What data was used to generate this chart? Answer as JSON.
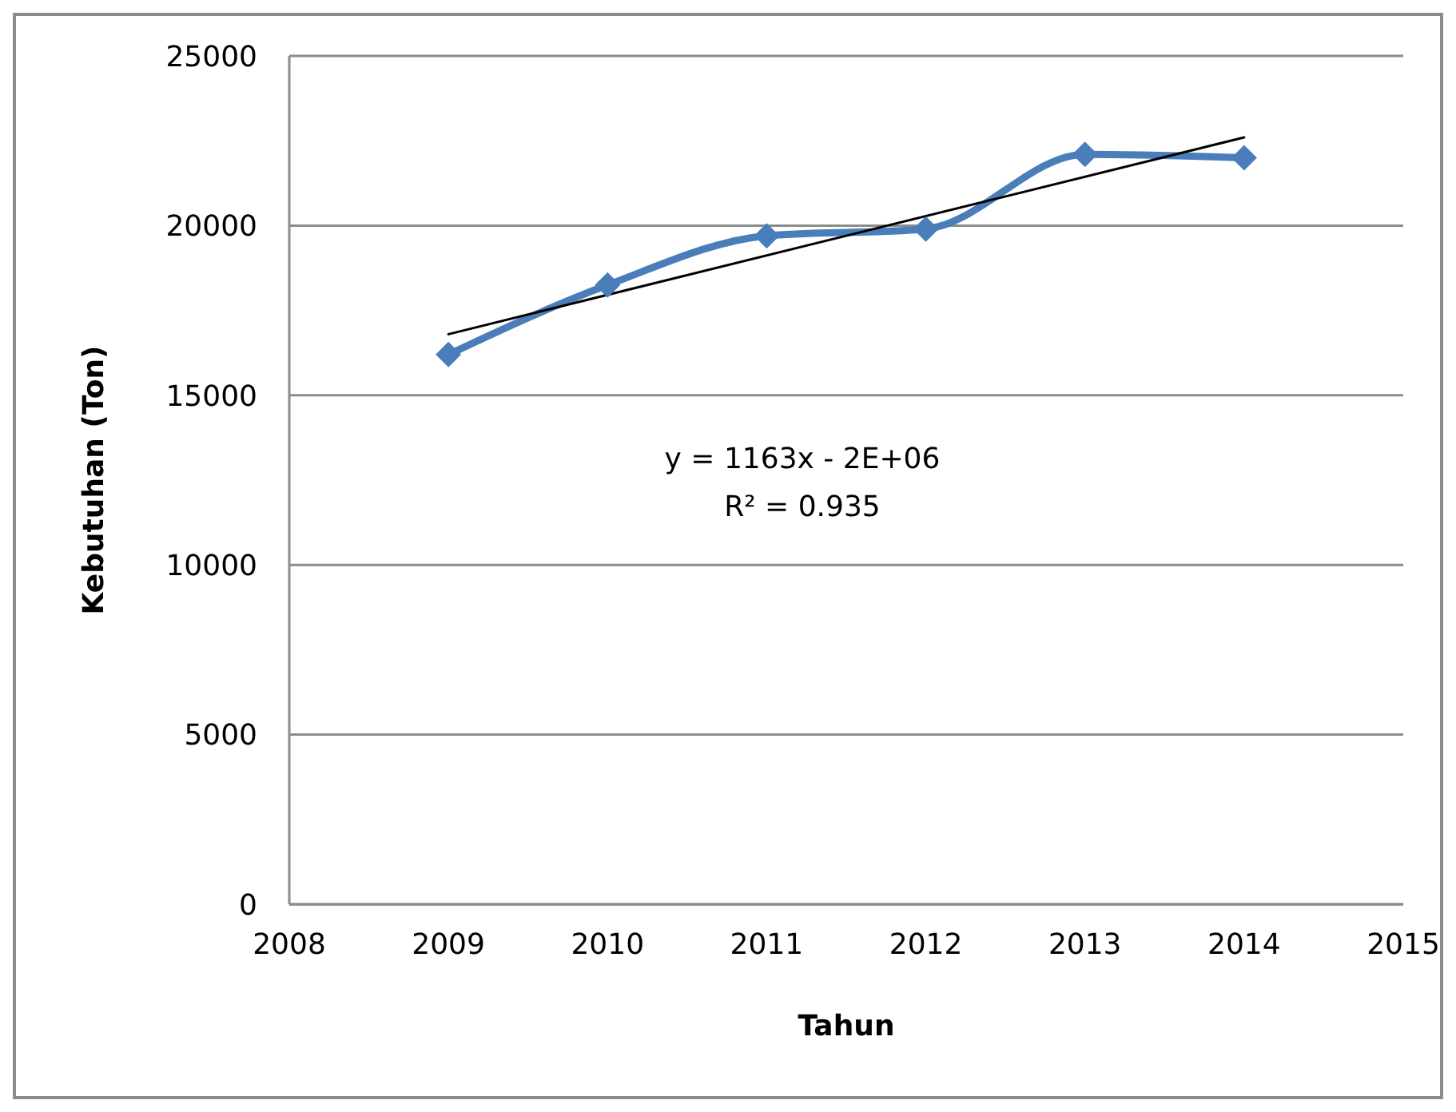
{
  "chart_data": {
    "type": "line",
    "xlabel": "Tahun",
    "ylabel": "Kebutuhan (Ton)",
    "x": [
      2009,
      2010,
      2011,
      2012,
      2013,
      2014
    ],
    "series": [
      {
        "color": "#4a7ebb",
        "values": [
          16200,
          18250,
          19700,
          19900,
          22100,
          22000
        ],
        "marker": "diamond",
        "line_style": "solid"
      },
      {
        "type": "line",
        "x": [
          2009,
          2014
        ],
        "color": "#000000",
        "values": [
          16800,
          22600
        ],
        "marker": "none",
        "line_style": "solid"
      }
    ],
    "xlim": [
      2008,
      2015
    ],
    "xticks": [
      2008,
      2009,
      2010,
      2011,
      2012,
      2013,
      2014,
      2015
    ],
    "ylim": [
      0,
      25000
    ],
    "yticks": [
      0,
      5000,
      10000,
      15000,
      20000,
      25000
    ],
    "grid": "y",
    "annotations": [
      "y = 1163x - 2E+06",
      "R² = 0.935"
    ]
  }
}
